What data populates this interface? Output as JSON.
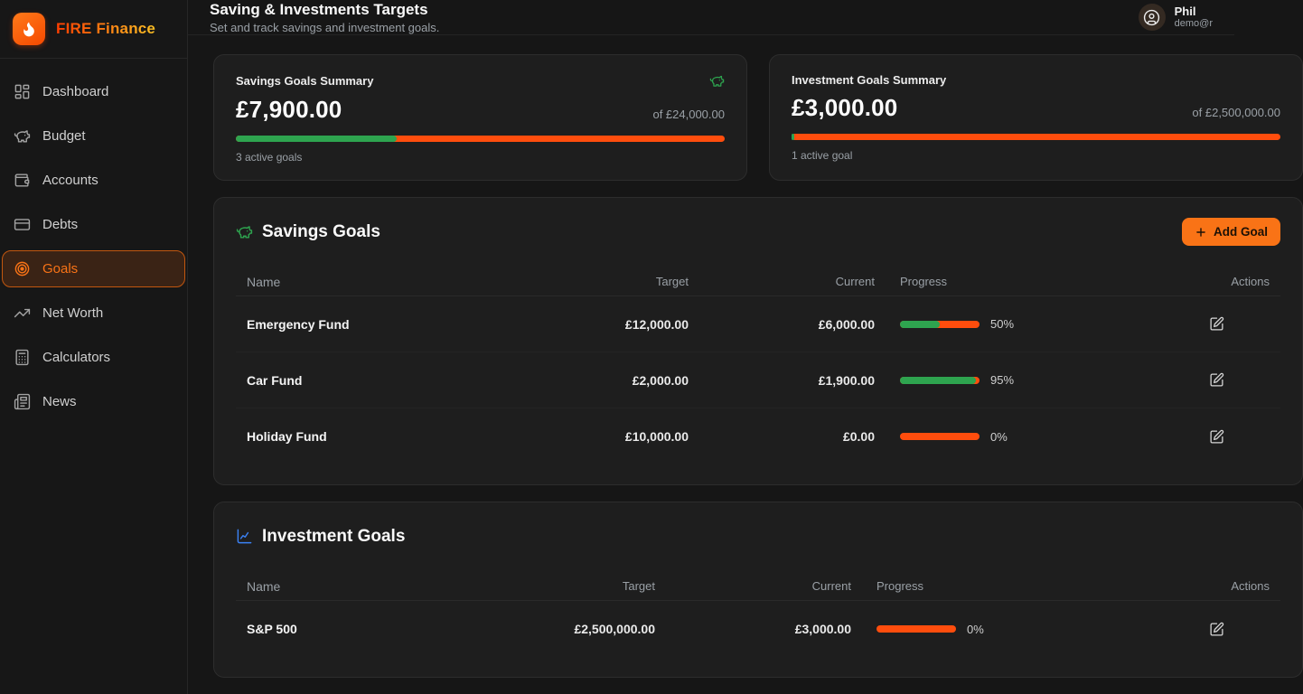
{
  "app": {
    "title": "FIRE Finance"
  },
  "sidebar": {
    "items": [
      {
        "label": "Dashboard",
        "icon": "dashboard-grid-icon",
        "active": false
      },
      {
        "label": "Budget",
        "icon": "piggy-bank-icon",
        "active": false
      },
      {
        "label": "Accounts",
        "icon": "wallet-icon",
        "active": false
      },
      {
        "label": "Debts",
        "icon": "credit-card-icon",
        "active": false
      },
      {
        "label": "Goals",
        "icon": "target-icon",
        "active": true
      },
      {
        "label": "Net Worth",
        "icon": "trending-up-icon",
        "active": false
      },
      {
        "label": "Calculators",
        "icon": "calculator-icon",
        "active": false
      },
      {
        "label": "News",
        "icon": "newspaper-icon",
        "active": false
      }
    ]
  },
  "header": {
    "title": "Saving & Investments Targets",
    "subtitle": "Set and track savings and investment goals.",
    "user": {
      "name": "Phil",
      "email": "demo@r"
    }
  },
  "colors": {
    "accent_orange": "#f97316",
    "bar_orange": "#ff4d0d",
    "green": "#2ea44f",
    "blue": "#3b82f6"
  },
  "summary_cards": [
    {
      "title": "Savings Goals Summary",
      "amount": "£7,900.00",
      "of_text": "of £24,000.00",
      "progress_pct": 32.9,
      "footer": "3 active goals",
      "icon": "piggy-bank-icon"
    },
    {
      "title": "Investment Goals Summary",
      "amount": "£3,000.00",
      "of_text": "of £2,500,000.00",
      "progress_pct": 0.12,
      "footer": "1 active goal"
    }
  ],
  "savings_goals": {
    "title": "Savings Goals",
    "icon": "piggy-bank-icon",
    "add_button_label": "Add Goal",
    "columns": {
      "name": "Name",
      "target": "Target",
      "current": "Current",
      "progress": "Progress",
      "actions": "Actions"
    },
    "rows": [
      {
        "name": "Emergency Fund",
        "target": "£12,000.00",
        "current": "£6,000.00",
        "pct": 50,
        "pct_label": "50%"
      },
      {
        "name": "Car Fund",
        "target": "£2,000.00",
        "current": "£1,900.00",
        "pct": 95,
        "pct_label": "95%"
      },
      {
        "name": "Holiday Fund",
        "target": "£10,000.00",
        "current": "£0.00",
        "pct": 0,
        "pct_label": "0%"
      }
    ]
  },
  "investment_goals": {
    "title": "Investment Goals",
    "icon": "line-chart-icon",
    "columns": {
      "name": "Name",
      "target": "Target",
      "current": "Current",
      "progress": "Progress",
      "actions": "Actions"
    },
    "rows": [
      {
        "name": "S&P 500",
        "target": "£2,500,000.00",
        "current": "£3,000.00",
        "pct": 0,
        "pct_label": "0%"
      }
    ]
  }
}
